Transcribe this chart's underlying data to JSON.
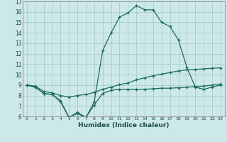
{
  "xlabel": "Humidex (Indice chaleur)",
  "bg_color": "#cde8e8",
  "grid_color": "#aacccc",
  "line_color": "#1a6b5a",
  "xlim": [
    -0.5,
    23.5
  ],
  "ylim": [
    6,
    17
  ],
  "xticks": [
    0,
    1,
    2,
    3,
    4,
    5,
    6,
    7,
    8,
    9,
    10,
    11,
    12,
    13,
    14,
    15,
    16,
    17,
    18,
    19,
    20,
    21,
    22,
    23
  ],
  "yticks": [
    6,
    7,
    8,
    9,
    10,
    11,
    12,
    13,
    14,
    15,
    16,
    17
  ],
  "curve1_x": [
    0,
    1,
    2,
    3,
    4,
    5,
    6,
    7,
    8,
    9,
    10,
    11,
    12,
    13,
    14,
    15,
    16,
    17,
    18,
    19,
    20,
    21,
    22,
    23
  ],
  "curve1_y": [
    9.0,
    8.8,
    8.2,
    8.1,
    7.4,
    5.9,
    6.4,
    5.9,
    7.1,
    8.2,
    8.5,
    8.6,
    8.6,
    8.6,
    8.6,
    8.65,
    8.7,
    8.7,
    8.75,
    8.8,
    8.85,
    8.9,
    9.0,
    9.1
  ],
  "curve2_x": [
    0,
    1,
    2,
    3,
    4,
    5,
    6,
    7,
    8,
    9,
    10,
    11,
    12,
    13,
    14,
    15,
    16,
    17,
    18,
    19,
    20,
    21,
    22,
    23
  ],
  "curve2_y": [
    9.0,
    8.8,
    8.2,
    8.1,
    7.5,
    5.9,
    6.3,
    5.85,
    7.4,
    12.3,
    14.0,
    15.5,
    15.9,
    16.6,
    16.2,
    16.2,
    15.0,
    14.6,
    13.3,
    10.7,
    8.8,
    8.6,
    8.8,
    9.0
  ],
  "curve3_x": [
    0,
    1,
    2,
    3,
    4,
    5,
    6,
    7,
    8,
    9,
    10,
    11,
    12,
    13,
    14,
    15,
    16,
    17,
    18,
    19,
    20,
    21,
    22,
    23
  ],
  "curve3_y": [
    9.0,
    8.9,
    8.4,
    8.25,
    8.0,
    7.85,
    8.0,
    8.1,
    8.3,
    8.6,
    8.8,
    9.05,
    9.2,
    9.5,
    9.7,
    9.9,
    10.05,
    10.2,
    10.35,
    10.45,
    10.5,
    10.55,
    10.6,
    10.65
  ],
  "markersize": 3.5,
  "linewidth": 0.9
}
